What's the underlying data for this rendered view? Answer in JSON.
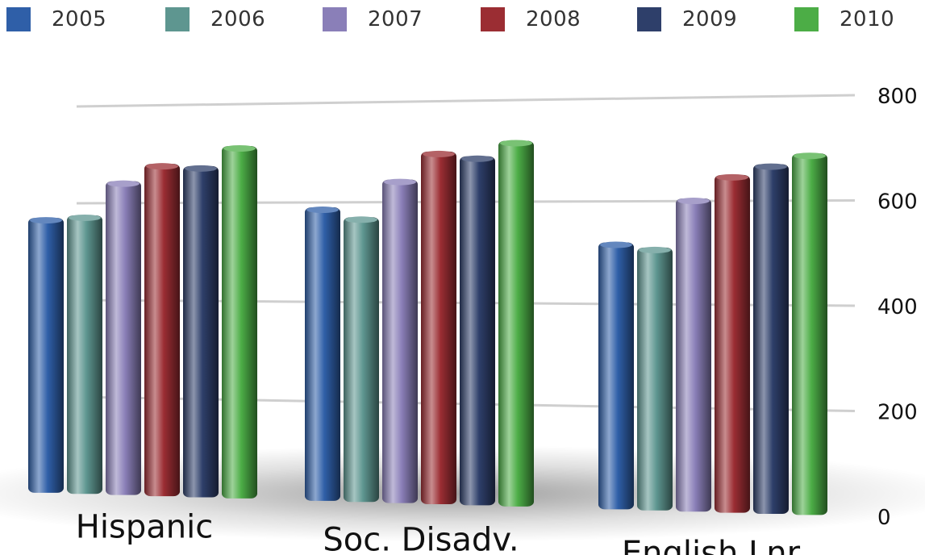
{
  "chart_data": {
    "type": "bar",
    "categories": [
      "Hispanic",
      "Soc. Disadv.",
      "English Lnr."
    ],
    "series": [
      {
        "name": "2005",
        "values": [
          570,
          590,
          520
        ],
        "color": "#2f5fa8"
      },
      {
        "name": "2006",
        "values": [
          575,
          570,
          510
        ],
        "color": "#5e9690"
      },
      {
        "name": "2007",
        "values": [
          645,
          645,
          605
        ],
        "color": "#8a7fb8"
      },
      {
        "name": "2008",
        "values": [
          680,
          700,
          650
        ],
        "color": "#9b2d33"
      },
      {
        "name": "2009",
        "values": [
          675,
          690,
          670
        ],
        "color": "#2e3f6a"
      },
      {
        "name": "2010",
        "values": [
          715,
          720,
          690
        ],
        "color": "#4cad46"
      }
    ],
    "y_ticks": [
      "0",
      "200",
      "400",
      "600",
      "800"
    ],
    "ylim": [
      0,
      800
    ],
    "grid": true,
    "legend_position": "top",
    "title": "",
    "xlabel": "",
    "ylabel": ""
  }
}
